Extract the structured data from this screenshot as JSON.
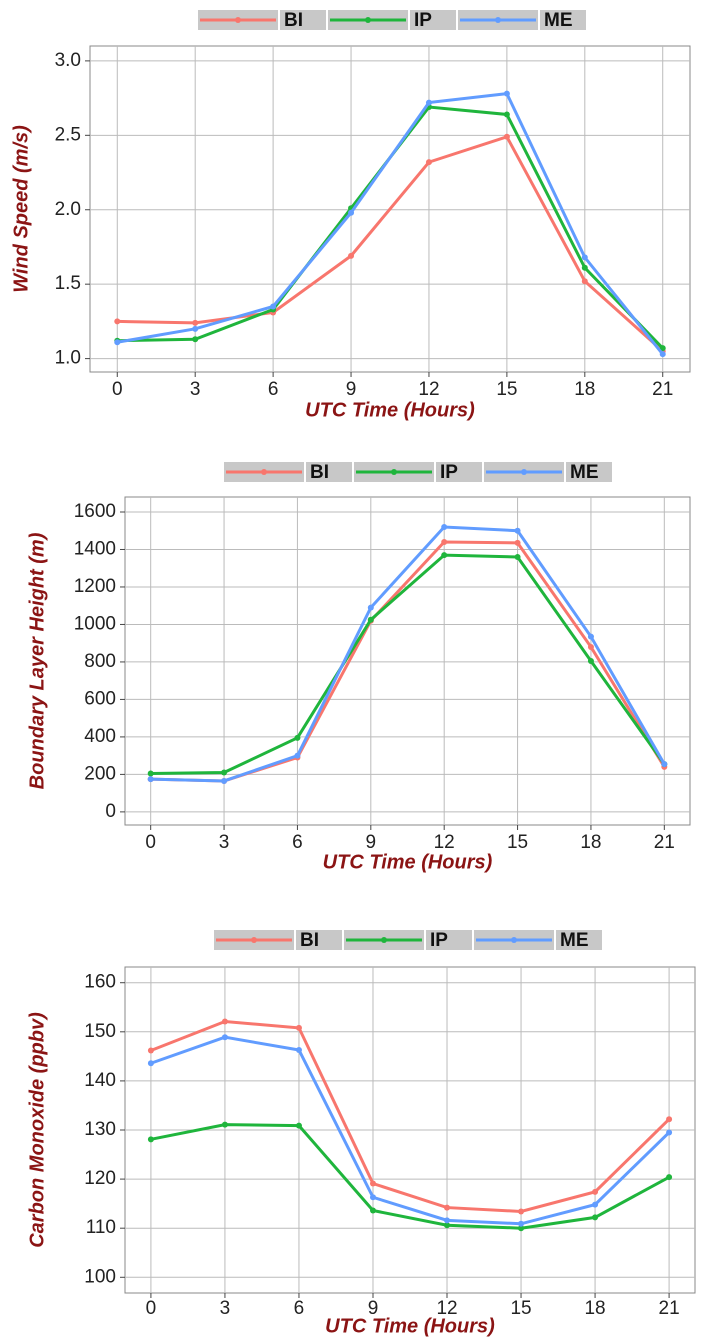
{
  "chart_data": [
    {
      "type": "line",
      "x_label": "UTC Time (Hours)",
      "y_label": "Wind Speed (m/s)",
      "x": [
        0,
        3,
        6,
        9,
        12,
        15,
        18,
        21
      ],
      "xlim": [
        -1.05,
        22.05
      ],
      "xticks": [
        0,
        3,
        6,
        9,
        12,
        15,
        18,
        21
      ],
      "ylim": [
        0.91,
        3.1
      ],
      "yticks": [
        {
          "value": 1,
          "label": "1.0"
        },
        1.5,
        {
          "value": 2,
          "label": "2.0"
        },
        2.5,
        {
          "value": 3,
          "label": "3.0"
        }
      ],
      "grid": true,
      "series": [
        {
          "name": "BI",
          "color": "#f8766d",
          "values": [
            1.25,
            1.24,
            1.31,
            1.69,
            2.32,
            2.49,
            1.52,
            1.05
          ]
        },
        {
          "name": "IP",
          "color": "#1fb53c",
          "values": [
            1.12,
            1.13,
            1.33,
            2.01,
            2.69,
            2.64,
            1.61,
            1.07
          ]
        },
        {
          "name": "ME",
          "color": "#619cff",
          "values": [
            1.11,
            1.2,
            1.35,
            1.98,
            2.72,
            2.78,
            1.68,
            1.03
          ]
        }
      ]
    },
    {
      "type": "line",
      "x_label": "UTC Time (Hours)",
      "y_label": "Boundary Layer Height (m)",
      "x": [
        0,
        3,
        6,
        9,
        12,
        15,
        18,
        21
      ],
      "xlim": [
        -1.05,
        22.05
      ],
      "xticks": [
        0,
        3,
        6,
        9,
        12,
        15,
        18,
        21
      ],
      "ylim": [
        -70,
        1680
      ],
      "yticks": [
        0,
        200,
        400,
        600,
        800,
        1000,
        1200,
        1400,
        1600
      ],
      "grid": true,
      "series": [
        {
          "name": "BI",
          "color": "#f8766d",
          "values": [
            175,
            165,
            290,
            1020,
            1440,
            1435,
            880,
            240
          ]
        },
        {
          "name": "IP",
          "color": "#1fb53c",
          "values": [
            205,
            210,
            395,
            1025,
            1370,
            1360,
            805,
            255
          ]
        },
        {
          "name": "ME",
          "color": "#619cff",
          "values": [
            175,
            165,
            300,
            1090,
            1520,
            1500,
            935,
            255
          ]
        }
      ]
    },
    {
      "type": "line",
      "x_label": "UTC Time (Hours)",
      "y_label": "Carbon Monoxide (ppbv)",
      "x": [
        0,
        3,
        6,
        9,
        12,
        15,
        18,
        21
      ],
      "xlim": [
        -1.05,
        22.05
      ],
      "xticks": [
        0,
        3,
        6,
        9,
        12,
        15,
        18,
        21
      ],
      "ylim": [
        96.8,
        163.2
      ],
      "yticks": [
        100,
        110,
        120,
        130,
        140,
        150,
        160
      ],
      "grid": true,
      "series": [
        {
          "name": "BI",
          "color": "#f8766d",
          "values": [
            146.2,
            152.1,
            150.8,
            119.1,
            114.2,
            113.4,
            117.4,
            132.2
          ]
        },
        {
          "name": "IP",
          "color": "#1fb53c",
          "values": [
            128.1,
            131.1,
            130.9,
            113.6,
            110.6,
            110.0,
            112.2,
            120.4
          ]
        },
        {
          "name": "ME",
          "color": "#619cff",
          "values": [
            143.6,
            148.9,
            146.3,
            116.3,
            111.6,
            110.9,
            114.8,
            129.5
          ]
        }
      ]
    }
  ]
}
